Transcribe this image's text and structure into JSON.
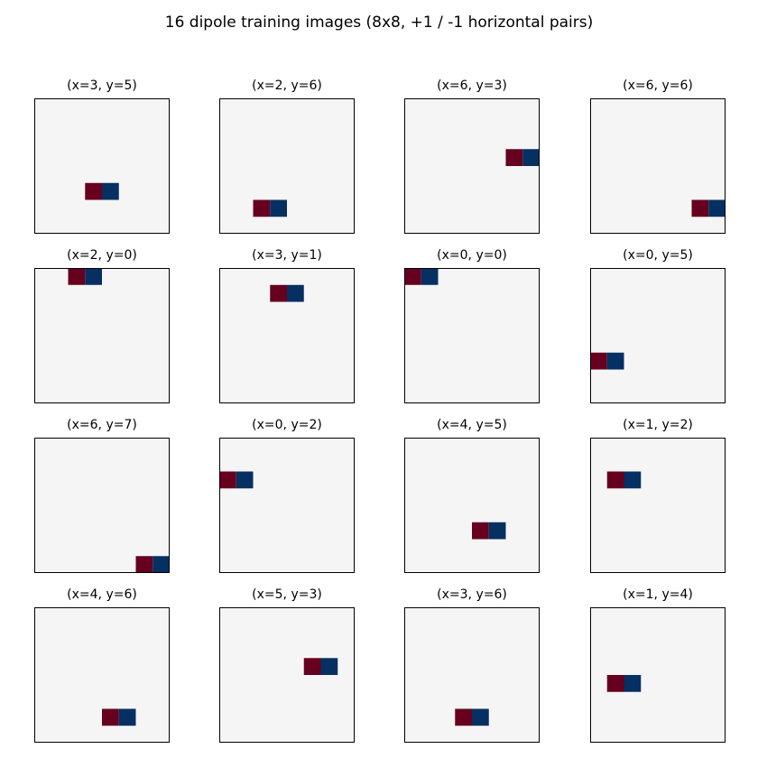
{
  "chart_data": {
    "type": "heatmap",
    "title": "16 dipole training images (8x8, +1 / -1 horizontal pairs)",
    "grid_size": 8,
    "positive_value": 1,
    "negative_value": -1,
    "colors": {
      "background": "#f5f5f5",
      "positive": "#67001f",
      "negative": "#053061",
      "border": "#000000"
    },
    "panels": [
      {
        "title": "(x=3, y=5)",
        "x": 3,
        "y": 5
      },
      {
        "title": "(x=2, y=6)",
        "x": 2,
        "y": 6
      },
      {
        "title": "(x=6, y=3)",
        "x": 6,
        "y": 3
      },
      {
        "title": "(x=6, y=6)",
        "x": 6,
        "y": 6
      },
      {
        "title": "(x=2, y=0)",
        "x": 2,
        "y": 0
      },
      {
        "title": "(x=3, y=1)",
        "x": 3,
        "y": 1
      },
      {
        "title": "(x=0, y=0)",
        "x": 0,
        "y": 0
      },
      {
        "title": "(x=0, y=5)",
        "x": 0,
        "y": 5
      },
      {
        "title": "(x=6, y=7)",
        "x": 6,
        "y": 7
      },
      {
        "title": "(x=0, y=2)",
        "x": 0,
        "y": 2
      },
      {
        "title": "(x=4, y=5)",
        "x": 4,
        "y": 5
      },
      {
        "title": "(x=1, y=2)",
        "x": 1,
        "y": 2
      },
      {
        "title": "(x=4, y=6)",
        "x": 4,
        "y": 6
      },
      {
        "title": "(x=5, y=3)",
        "x": 5,
        "y": 3
      },
      {
        "title": "(x=3, y=6)",
        "x": 3,
        "y": 6
      },
      {
        "title": "(x=1, y=4)",
        "x": 1,
        "y": 4
      }
    ]
  }
}
